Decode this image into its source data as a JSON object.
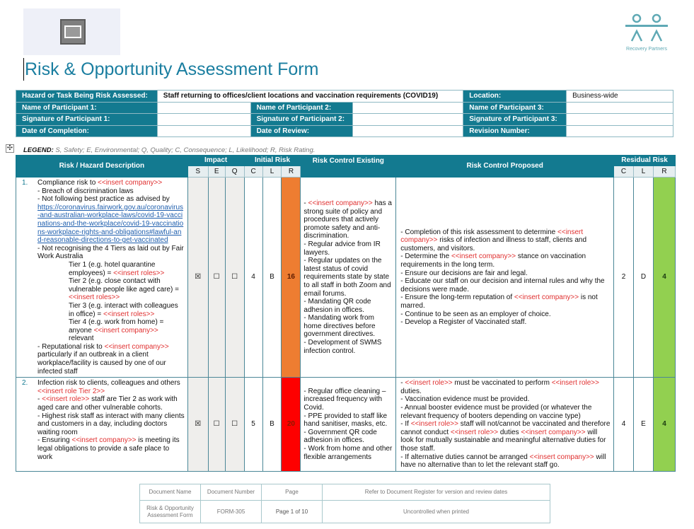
{
  "header": {
    "logo_text": "Recovery Partners",
    "title": "Risk & Opportunity Assessment Form"
  },
  "info": {
    "hazard_label": "Hazard or Task Being Risk Assessed:",
    "hazard_value": "Staff returning to offices/client locations and vaccination requirements (COVID19)",
    "location_label": "Location:",
    "location_value": "Business-wide",
    "p1_name": "Name of Participant 1:",
    "p2_name": "Name of Participant 2:",
    "p3_name": "Name of Participant 3:",
    "p1_sig": "Signature of Participant 1:",
    "p2_sig": "Signature of Participant 2:",
    "p3_sig": "Signature of Participant 3:",
    "completion": "Date of Completion:",
    "review": "Date of Review:",
    "revision": "Revision Number:"
  },
  "legend": {
    "label": "LEGEND:",
    "text": " S, Safety; E, Environmental; Q, Quality; C, Consequence; L, Likelihood; R, Risk Rating."
  },
  "table": {
    "headers": {
      "desc": "Risk / Hazard Description",
      "impact": "Impact",
      "initial": "Initial Risk",
      "existing": "Risk Control Existing",
      "proposed": "Risk Control Proposed",
      "residual": "Residual Risk",
      "s": "S",
      "e": "E",
      "q": "Q",
      "c": "C",
      "l": "L",
      "r": "R",
      "rc": "C",
      "rl": "L",
      "rr": "R"
    },
    "colors": {
      "orange": "#ee7d31",
      "red": "#fe0000",
      "green": "#92d050",
      "teal": "#137a90",
      "placeholder_red": "#e03030"
    },
    "rows": [
      {
        "number": "1.",
        "desc": [
          [
            [
              "n",
              "Compliance risk to "
            ],
            [
              "r",
              "<<insert company>>"
            ]
          ],
          [
            [
              "n",
              "- Breach of discrimination laws"
            ]
          ],
          [
            [
              "n",
              "- Not following best practice as advised by"
            ]
          ],
          [
            [
              "l",
              "https://coronavirus.fairwork.gov.au/coronavirus-and-australian-workplace-laws/covid-19-vaccinations-and-the-workplace/covid-19-vaccinations-workplace-rights-and-obligations#lawful-and-reasonable-directions-to-get-vaccinated"
            ]
          ],
          [
            [
              "n",
              "- Not recognising the 4 Tiers as laid out by Fair Work Australia"
            ]
          ],
          [
            "i",
            [
              "n",
              "Tier 1 (e.g. hotel quarantine employees) = "
            ],
            [
              "r",
              "<<insert roles>>"
            ]
          ],
          [
            "i",
            [
              "n",
              "Tier 2 (e.g. close contact with vulnerable people like aged care) = "
            ],
            [
              "r",
              "<<insert roles>>"
            ]
          ],
          [
            "i",
            [
              "n",
              "Tier 3 (e.g. interact with colleagues in office) = "
            ],
            [
              "r",
              "<<insert roles>>"
            ]
          ],
          [
            "i",
            [
              "n",
              "Tier 4 (e.g. work from home) = anyone "
            ],
            [
              "r",
              "<<insert company>>"
            ],
            [
              "n",
              " relevant"
            ]
          ],
          [
            [
              "n",
              "- Reputational risk to "
            ],
            [
              "r",
              "<<insert company>>"
            ],
            [
              "n",
              " particularly if an outbreak in a client workplace/facility is caused by one of our infected staff"
            ]
          ]
        ],
        "s": "☒",
        "e": "☐",
        "q": "☐",
        "c": "4",
        "l": "B",
        "r": "16",
        "r_color": "#ee7d31",
        "existing": [
          [
            [
              "n",
              "- "
            ],
            [
              "r",
              "<<insert company>>"
            ],
            [
              "n",
              " has a strong suite of policy and procedures that actively promote safety and anti-discrimination."
            ]
          ],
          [
            [
              "n",
              "- Regular advice from IR lawyers."
            ]
          ],
          [
            [
              "n",
              "- Regular updates on the latest status of covid requirements state by state to all staff in both Zoom and email forums."
            ]
          ],
          [
            [
              "n",
              "- Mandating QR code adhesion in offices."
            ]
          ],
          [
            [
              "n",
              "- Mandating work from home directives before government directives."
            ]
          ],
          [
            [
              "n",
              "- Development of SWMS infection control."
            ]
          ]
        ],
        "proposed": [
          [
            [
              "n",
              "- Completion of this risk assessment to determine "
            ],
            [
              "r",
              "<<insert company>>"
            ],
            [
              "n",
              " risks of infection and illness to staff, clients and customers, and visitors."
            ]
          ],
          [
            [
              "n",
              "- Determine the "
            ],
            [
              "r",
              "<<insert company>>"
            ],
            [
              "n",
              " stance on vaccination requirements in the long term."
            ]
          ],
          [
            [
              "n",
              "- Ensure our decisions are fair and legal."
            ]
          ],
          [
            [
              "n",
              "- Educate our staff on our decision and internal rules and why the decisions were made."
            ]
          ],
          [
            [
              "n",
              "- Ensure the long-term reputation of "
            ],
            [
              "r",
              "<<insert company>>"
            ],
            [
              "n",
              " is not marred."
            ]
          ],
          [
            [
              "n",
              "- Continue to be seen as an employer of choice."
            ]
          ],
          [
            [
              "n",
              "- Develop a Register of Vaccinated staff."
            ]
          ]
        ],
        "rc": "2",
        "rl": "D",
        "rr": "4",
        "rr_color": "#92d050"
      },
      {
        "number": "2.",
        "desc": [
          [
            [
              "n",
              "Infection risk to clients, colleagues and others "
            ],
            [
              "r",
              "<<insert role Tier 2>>"
            ]
          ],
          [
            [
              "n",
              "- "
            ],
            [
              "r",
              "<<insert role>>"
            ],
            [
              "n",
              " staff are Tier 2 as work with aged care and other vulnerable cohorts."
            ]
          ],
          [
            [
              "n",
              "- Highest risk staff as interact with many clients and customers in a day, including doctors waiting room"
            ]
          ],
          [
            [
              "n",
              "- Ensuring "
            ],
            [
              "r",
              "<<insert company>>"
            ],
            [
              "n",
              " is meeting its legal obligations to provide a safe place to work"
            ]
          ]
        ],
        "s": "☒",
        "e": "☐",
        "q": "☐",
        "c": "5",
        "l": "B",
        "r": "20",
        "r_color": "#fe0000",
        "existing": [
          [
            [
              "n",
              "- Regular office cleaning – increased frequency with Covid."
            ]
          ],
          [
            [
              "n",
              "- PPE provided to staff like hand sanitiser, masks, etc."
            ]
          ],
          [
            [
              "n",
              "- Government QR code adhesion in offices."
            ]
          ],
          [
            [
              "n",
              "- Work from home and other flexible arrangements"
            ]
          ]
        ],
        "proposed": [
          [
            [
              "n",
              "- "
            ],
            [
              "r",
              "<<insert role>>"
            ],
            [
              "n",
              " must be vaccinated to perform "
            ],
            [
              "r",
              "<<insert role>>"
            ],
            [
              "n",
              " duties."
            ]
          ],
          [
            [
              "n",
              "- Vaccination evidence must be provided."
            ]
          ],
          [
            [
              "n",
              "- Annual booster evidence must be provided (or whatever the relevant frequency of booters depending on vaccine type)"
            ]
          ],
          [
            [
              "n",
              "- If "
            ],
            [
              "r",
              "<<insert role>>"
            ],
            [
              "n",
              " staff will not/cannot be vaccinated and therefore cannot conduct "
            ],
            [
              "r",
              "<<insert role>>"
            ],
            [
              "n",
              " duties "
            ],
            [
              "r",
              "<<insert company>>"
            ],
            [
              "n",
              " will look for mutually sustainable and meaningful alternative duties for those staff."
            ]
          ],
          [
            [
              "n",
              "- If alternative duties cannot be arranged "
            ],
            [
              "r",
              "<<insert company>>"
            ],
            [
              "n",
              " will have no alternative than to let the relevant staff go."
            ]
          ]
        ],
        "rc": "4",
        "rl": "E",
        "rr": "4",
        "rr_color": "#92d050"
      }
    ]
  },
  "footer": {
    "doc_name_label": "Document Name",
    "doc_number_label": "Document Number",
    "page_label": "Page",
    "register_note": "Refer to Document Register for version and review dates",
    "doc_name": "Risk & Opportunity Assessment Form",
    "doc_number": "FORM-305",
    "page": "Page 1 of 10",
    "uncontrolled": "Uncontrolled when printed"
  }
}
